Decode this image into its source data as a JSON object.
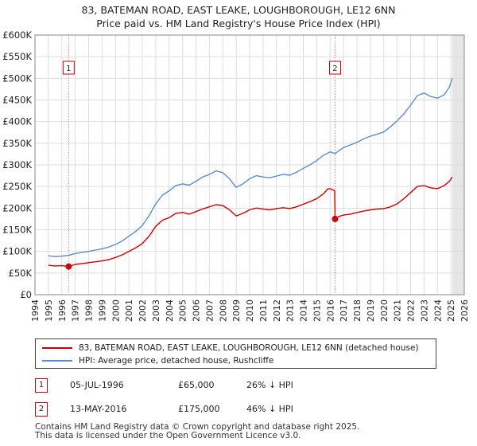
{
  "title_line1": "83, BATEMAN ROAD, EAST LEAKE, LOUGHBOROUGH, LE12 6NN",
  "title_line2": "Price paid vs. HM Land Registry's House Price Index (HPI)",
  "chart_data": {
    "type": "line",
    "ylim": [
      0,
      600000
    ],
    "xlim": [
      1994,
      2026
    ],
    "y_ticks": [
      0,
      50000,
      100000,
      150000,
      200000,
      250000,
      300000,
      350000,
      400000,
      450000,
      500000,
      550000,
      600000
    ],
    "y_tick_labels": [
      "£0",
      "£50K",
      "£100K",
      "£150K",
      "£200K",
      "£250K",
      "£300K",
      "£350K",
      "£400K",
      "£450K",
      "£500K",
      "£550K",
      "£600K"
    ],
    "x_ticks": [
      1994,
      1995,
      1996,
      1997,
      1998,
      1999,
      2000,
      2001,
      2002,
      2003,
      2004,
      2005,
      2006,
      2007,
      2008,
      2009,
      2010,
      2011,
      2012,
      2013,
      2014,
      2015,
      2016,
      2017,
      2018,
      2019,
      2020,
      2021,
      2022,
      2023,
      2024,
      2025,
      2026
    ],
    "x_tick_labels": [
      "1994",
      "1995",
      "1996",
      "1997",
      "1998",
      "1999",
      "2000",
      "2001",
      "2002",
      "2003",
      "2004",
      "2005",
      "2006",
      "2007",
      "2008",
      "2009",
      "2010",
      "2011",
      "2012",
      "2013",
      "2014",
      "2015",
      "2016",
      "2017",
      "2018",
      "2019",
      "2020",
      "2021",
      "2022",
      "2023",
      "2024",
      "2025",
      "2026"
    ],
    "series": [
      {
        "name": "83, BATEMAN ROAD, EAST LEAKE, LOUGHBOROUGH, LE12 6NN (detached house)",
        "color": "#cc0000",
        "points": [
          [
            1995.0,
            68000
          ],
          [
            1995.5,
            66500
          ],
          [
            1996.0,
            67000
          ],
          [
            1996.51,
            65000
          ],
          [
            1997.0,
            70000
          ],
          [
            1997.5,
            72000
          ],
          [
            1998.0,
            74000
          ],
          [
            1998.5,
            76000
          ],
          [
            1999.0,
            78000
          ],
          [
            1999.5,
            81000
          ],
          [
            2000.0,
            86000
          ],
          [
            2000.5,
            92000
          ],
          [
            2001.0,
            100000
          ],
          [
            2001.5,
            108000
          ],
          [
            2002.0,
            118000
          ],
          [
            2002.5,
            135000
          ],
          [
            2003.0,
            158000
          ],
          [
            2003.5,
            172000
          ],
          [
            2004.0,
            178000
          ],
          [
            2004.5,
            188000
          ],
          [
            2005.0,
            190000
          ],
          [
            2005.5,
            186000
          ],
          [
            2006.0,
            192000
          ],
          [
            2006.5,
            198000
          ],
          [
            2007.0,
            203000
          ],
          [
            2007.5,
            208000
          ],
          [
            2008.0,
            206000
          ],
          [
            2008.5,
            196000
          ],
          [
            2009.0,
            182000
          ],
          [
            2009.5,
            188000
          ],
          [
            2010.0,
            196000
          ],
          [
            2010.5,
            200000
          ],
          [
            2011.0,
            198000
          ],
          [
            2011.5,
            196000
          ],
          [
            2012.0,
            199000
          ],
          [
            2012.5,
            201000
          ],
          [
            2013.0,
            199000
          ],
          [
            2013.5,
            203000
          ],
          [
            2014.0,
            209000
          ],
          [
            2014.5,
            215000
          ],
          [
            2015.0,
            222000
          ],
          [
            2015.5,
            233000
          ],
          [
            2015.85,
            245000
          ],
          [
            2016.0,
            245000
          ],
          [
            2016.34,
            240000
          ],
          [
            2016.37,
            175000
          ],
          [
            2016.6,
            180000
          ],
          [
            2017.0,
            184000
          ],
          [
            2017.5,
            186000
          ],
          [
            2018.0,
            190000
          ],
          [
            2018.5,
            193000
          ],
          [
            2019.0,
            196000
          ],
          [
            2019.5,
            198000
          ],
          [
            2020.0,
            199000
          ],
          [
            2020.5,
            203000
          ],
          [
            2021.0,
            210000
          ],
          [
            2021.5,
            222000
          ],
          [
            2022.0,
            236000
          ],
          [
            2022.5,
            250000
          ],
          [
            2023.0,
            252000
          ],
          [
            2023.5,
            247000
          ],
          [
            2024.0,
            245000
          ],
          [
            2024.5,
            252000
          ],
          [
            2024.9,
            262000
          ],
          [
            2025.1,
            272000
          ]
        ]
      },
      {
        "name": "HPI: Average price, detached house, Rushcliffe",
        "color": "#5b8ecb",
        "points": [
          [
            1995.0,
            90000
          ],
          [
            1995.5,
            88000
          ],
          [
            1996.0,
            89000
          ],
          [
            1996.5,
            91000
          ],
          [
            1997.0,
            95000
          ],
          [
            1997.5,
            98000
          ],
          [
            1998.0,
            100000
          ],
          [
            1998.5,
            103000
          ],
          [
            1999.0,
            106000
          ],
          [
            1999.5,
            110000
          ],
          [
            2000.0,
            116000
          ],
          [
            2000.5,
            124000
          ],
          [
            2001.0,
            135000
          ],
          [
            2001.5,
            146000
          ],
          [
            2002.0,
            160000
          ],
          [
            2002.5,
            182000
          ],
          [
            2003.0,
            210000
          ],
          [
            2003.5,
            230000
          ],
          [
            2004.0,
            240000
          ],
          [
            2004.5,
            252000
          ],
          [
            2005.0,
            256000
          ],
          [
            2005.5,
            253000
          ],
          [
            2006.0,
            262000
          ],
          [
            2006.5,
            272000
          ],
          [
            2007.0,
            278000
          ],
          [
            2007.5,
            286000
          ],
          [
            2008.0,
            282000
          ],
          [
            2008.5,
            268000
          ],
          [
            2009.0,
            248000
          ],
          [
            2009.5,
            256000
          ],
          [
            2010.0,
            268000
          ],
          [
            2010.5,
            275000
          ],
          [
            2011.0,
            272000
          ],
          [
            2011.5,
            270000
          ],
          [
            2012.0,
            274000
          ],
          [
            2012.5,
            278000
          ],
          [
            2013.0,
            276000
          ],
          [
            2013.5,
            283000
          ],
          [
            2014.0,
            292000
          ],
          [
            2014.5,
            300000
          ],
          [
            2015.0,
            310000
          ],
          [
            2015.5,
            322000
          ],
          [
            2016.0,
            330000
          ],
          [
            2016.37,
            326000
          ],
          [
            2016.7,
            334000
          ],
          [
            2017.0,
            340000
          ],
          [
            2017.5,
            346000
          ],
          [
            2018.0,
            352000
          ],
          [
            2018.5,
            360000
          ],
          [
            2019.0,
            366000
          ],
          [
            2019.5,
            371000
          ],
          [
            2020.0,
            376000
          ],
          [
            2020.5,
            388000
          ],
          [
            2021.0,
            402000
          ],
          [
            2021.5,
            418000
          ],
          [
            2022.0,
            438000
          ],
          [
            2022.5,
            460000
          ],
          [
            2023.0,
            466000
          ],
          [
            2023.5,
            458000
          ],
          [
            2024.0,
            454000
          ],
          [
            2024.5,
            462000
          ],
          [
            2024.9,
            480000
          ],
          [
            2025.1,
            500000
          ]
        ]
      }
    ],
    "sales_markers": [
      {
        "label": "1",
        "x": 1996.51,
        "y": 65000
      },
      {
        "label": "2",
        "x": 2016.37,
        "y": 175000
      }
    ]
  },
  "legend": {
    "property_label": "83, BATEMAN ROAD, EAST LEAKE, LOUGHBOROUGH, LE12 6NN (detached house)",
    "hpi_label": "HPI: Average price, detached house, Rushcliffe"
  },
  "sales": [
    {
      "num": "1",
      "date": "05-JUL-1996",
      "price": "£65,000",
      "hpi_diff": "26% ↓ HPI"
    },
    {
      "num": "2",
      "date": "13-MAY-2016",
      "price": "£175,000",
      "hpi_diff": "46% ↓ HPI"
    }
  ],
  "footer": {
    "line1": "Contains HM Land Registry data © Crown copyright and database right 2025.",
    "line2": "This data is licensed under the Open Government Licence v3.0."
  },
  "colors": {
    "property": "#cc0000",
    "hpi": "#5b8ecb",
    "grid": "#dddddd"
  }
}
